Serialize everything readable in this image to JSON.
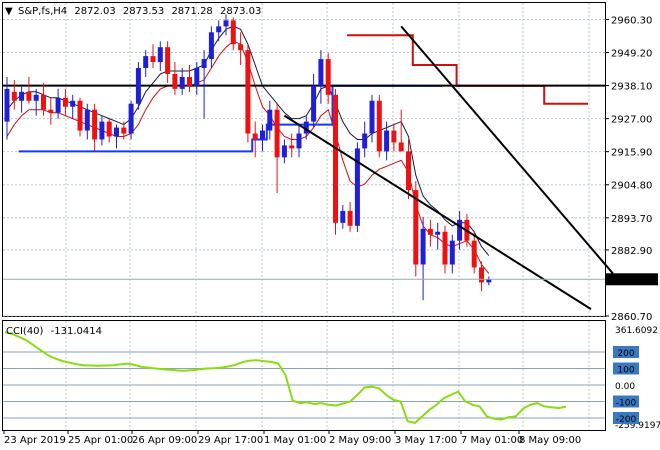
{
  "header": {
    "symbol": "S&P,fs,H4",
    "open": "2872.03",
    "high": "2873.53",
    "low": "2871.28",
    "close": "2873.03"
  },
  "cci_header": {
    "label": "CCI(40)",
    "value": "-131.0414"
  },
  "colors": {
    "bull": "#1f1fd8",
    "bear": "#ee1111",
    "grid": "#b9c7d3",
    "cci": "#88dd11",
    "upper_band": "#1a1a40",
    "lower_band": "#cc1111",
    "support": "#1438ff",
    "resistance": "#cc1111",
    "price_tag_bg": "#000000"
  },
  "chart_data": [
    {
      "type": "candlestick",
      "title": "",
      "ylim": [
        2860.7,
        2965.0
      ],
      "y_ticks": [
        "2960.30",
        "2949.20",
        "2938.10",
        "2927.00",
        "2915.90",
        "2904.80",
        "2893.70",
        "2882.90",
        "2860.70"
      ],
      "x_ticks": [
        "23 Apr 2019",
        "25 Apr 01:00",
        "26 Apr 09:00",
        "29 Apr 17:00",
        "1 May 01:00",
        "2 May 09:00",
        "3 May 17:00",
        "7 May 01:00",
        "8 May 09:00"
      ],
      "current_price": "2873.03",
      "horizontal_level": 2938.1,
      "candles": [
        {
          "o": 2926,
          "h": 2941,
          "l": 2920,
          "c": 2937
        },
        {
          "o": 2936,
          "h": 2940,
          "l": 2930,
          "c": 2933
        },
        {
          "o": 2933,
          "h": 2938,
          "l": 2929,
          "c": 2936
        },
        {
          "o": 2936,
          "h": 2941,
          "l": 2932,
          "c": 2933
        },
        {
          "o": 2933,
          "h": 2937,
          "l": 2928,
          "c": 2935
        },
        {
          "o": 2935,
          "h": 2939,
          "l": 2928,
          "c": 2930
        },
        {
          "o": 2930,
          "h": 2934,
          "l": 2925,
          "c": 2929
        },
        {
          "o": 2929,
          "h": 2937,
          "l": 2927,
          "c": 2934
        },
        {
          "o": 2934,
          "h": 2937,
          "l": 2928,
          "c": 2931
        },
        {
          "o": 2931,
          "h": 2935,
          "l": 2927,
          "c": 2933
        },
        {
          "o": 2933,
          "h": 2934,
          "l": 2921,
          "c": 2923
        },
        {
          "o": 2923,
          "h": 2932,
          "l": 2920,
          "c": 2930
        },
        {
          "o": 2930,
          "h": 2932,
          "l": 2916,
          "c": 2920
        },
        {
          "o": 2920,
          "h": 2928,
          "l": 2918,
          "c": 2926
        },
        {
          "o": 2926,
          "h": 2927,
          "l": 2919,
          "c": 2921
        },
        {
          "o": 2921,
          "h": 2925,
          "l": 2917,
          "c": 2924
        },
        {
          "o": 2924,
          "h": 2926,
          "l": 2920,
          "c": 2922
        },
        {
          "o": 2922,
          "h": 2933,
          "l": 2920,
          "c": 2932
        },
        {
          "o": 2932,
          "h": 2946,
          "l": 2930,
          "c": 2944
        },
        {
          "o": 2944,
          "h": 2950,
          "l": 2941,
          "c": 2948
        },
        {
          "o": 2948,
          "h": 2952,
          "l": 2944,
          "c": 2946
        },
        {
          "o": 2946,
          "h": 2953,
          "l": 2943,
          "c": 2951
        },
        {
          "o": 2951,
          "h": 2953,
          "l": 2939,
          "c": 2942
        },
        {
          "o": 2942,
          "h": 2946,
          "l": 2935,
          "c": 2937
        },
        {
          "o": 2937,
          "h": 2944,
          "l": 2935,
          "c": 2941
        },
        {
          "o": 2941,
          "h": 2945,
          "l": 2936,
          "c": 2938
        },
        {
          "o": 2938,
          "h": 2946,
          "l": 2935,
          "c": 2944
        },
        {
          "o": 2944,
          "h": 2950,
          "l": 2927,
          "c": 2947
        },
        {
          "o": 2947,
          "h": 2958,
          "l": 2944,
          "c": 2956
        },
        {
          "o": 2956,
          "h": 2960,
          "l": 2953,
          "c": 2958
        },
        {
          "o": 2958,
          "h": 2962,
          "l": 2955,
          "c": 2960
        },
        {
          "o": 2960,
          "h": 2961,
          "l": 2950,
          "c": 2952
        },
        {
          "o": 2952,
          "h": 2956,
          "l": 2945,
          "c": 2950
        },
        {
          "o": 2950,
          "h": 2952,
          "l": 2919,
          "c": 2922
        },
        {
          "o": 2922,
          "h": 2926,
          "l": 2914,
          "c": 2920
        },
        {
          "o": 2920,
          "h": 2925,
          "l": 2916,
          "c": 2923
        },
        {
          "o": 2923,
          "h": 2933,
          "l": 2920,
          "c": 2930
        },
        {
          "o": 2930,
          "h": 2932,
          "l": 2902,
          "c": 2914
        },
        {
          "o": 2914,
          "h": 2920,
          "l": 2912,
          "c": 2918
        },
        {
          "o": 2918,
          "h": 2922,
          "l": 2914,
          "c": 2917
        },
        {
          "o": 2917,
          "h": 2925,
          "l": 2914,
          "c": 2922
        },
        {
          "o": 2922,
          "h": 2928,
          "l": 2920,
          "c": 2926
        },
        {
          "o": 2926,
          "h": 2942,
          "l": 2924,
          "c": 2938
        },
        {
          "o": 2938,
          "h": 2950,
          "l": 2932,
          "c": 2947
        },
        {
          "o": 2947,
          "h": 2949,
          "l": 2932,
          "c": 2935
        },
        {
          "o": 2935,
          "h": 2937,
          "l": 2888,
          "c": 2892
        },
        {
          "o": 2892,
          "h": 2898,
          "l": 2890,
          "c": 2896
        },
        {
          "o": 2896,
          "h": 2899,
          "l": 2889,
          "c": 2891
        },
        {
          "o": 2891,
          "h": 2919,
          "l": 2889,
          "c": 2917
        },
        {
          "o": 2917,
          "h": 2926,
          "l": 2914,
          "c": 2922
        },
        {
          "o": 2922,
          "h": 2935,
          "l": 2919,
          "c": 2933
        },
        {
          "o": 2933,
          "h": 2935,
          "l": 2914,
          "c": 2916
        },
        {
          "o": 2916,
          "h": 2926,
          "l": 2913,
          "c": 2923
        },
        {
          "o": 2923,
          "h": 2925,
          "l": 2916,
          "c": 2919
        },
        {
          "o": 2919,
          "h": 2930,
          "l": 2916,
          "c": 2916
        },
        {
          "o": 2916,
          "h": 2920,
          "l": 2900,
          "c": 2903
        },
        {
          "o": 2903,
          "h": 2906,
          "l": 2874,
          "c": 2878
        },
        {
          "o": 2878,
          "h": 2894,
          "l": 2866,
          "c": 2890
        },
        {
          "o": 2890,
          "h": 2893,
          "l": 2884,
          "c": 2888
        },
        {
          "o": 2888,
          "h": 2892,
          "l": 2883,
          "c": 2889
        },
        {
          "o": 2889,
          "h": 2891,
          "l": 2875,
          "c": 2878
        },
        {
          "o": 2878,
          "h": 2888,
          "l": 2875,
          "c": 2886
        },
        {
          "o": 2886,
          "h": 2896,
          "l": 2883,
          "c": 2893
        },
        {
          "o": 2893,
          "h": 2895,
          "l": 2884,
          "c": 2886
        },
        {
          "o": 2886,
          "h": 2889,
          "l": 2875,
          "c": 2877
        },
        {
          "o": 2877,
          "h": 2879,
          "l": 2869,
          "c": 2872
        },
        {
          "o": 2872,
          "h": 2874,
          "l": 2871,
          "c": 2873
        }
      ],
      "upper_band": [
        2930,
        2933,
        2935,
        2936,
        2936,
        2935,
        2934,
        2934,
        2933,
        2932,
        2931,
        2930,
        2929,
        2928,
        2927,
        2926,
        2925,
        2927,
        2931,
        2936,
        2939,
        2942,
        2943,
        2943,
        2943,
        2943,
        2944,
        2945,
        2950,
        2954,
        2957,
        2958,
        2957,
        2952,
        2945,
        2938,
        2935,
        2932,
        2929,
        2927,
        2927,
        2928,
        2932,
        2937,
        2938,
        2932,
        2926,
        2922,
        2920,
        2920,
        2922,
        2923,
        2924,
        2925,
        2926,
        2921,
        2908,
        2901,
        2898,
        2896,
        2893,
        2891,
        2892,
        2892,
        2889,
        2884,
        2881
      ],
      "lower_band": [
        2921,
        2925,
        2928,
        2930,
        2930,
        2930,
        2929,
        2929,
        2928,
        2927,
        2926,
        2925,
        2924,
        2923,
        2922,
        2921,
        2921,
        2922,
        2925,
        2930,
        2934,
        2937,
        2938,
        2938,
        2938,
        2938,
        2939,
        2940,
        2944,
        2948,
        2951,
        2953,
        2952,
        2946,
        2938,
        2931,
        2928,
        2924,
        2921,
        2920,
        2920,
        2921,
        2924,
        2928,
        2930,
        2922,
        2913,
        2906,
        2904,
        2905,
        2908,
        2910,
        2911,
        2912,
        2913,
        2909,
        2898,
        2891,
        2888,
        2887,
        2885,
        2884,
        2885,
        2886,
        2883,
        2878,
        2875
      ],
      "support_steps": [
        {
          "from": 2,
          "to": 34,
          "level": 2916
        },
        {
          "from": 34,
          "to": 36,
          "level": 2920
        },
        {
          "from": 36,
          "to": 45,
          "level": 2925
        },
        {
          "from": 45,
          "to": 60,
          "level": 2938
        }
      ],
      "resistance_steps": [
        {
          "from": 47,
          "to": 56,
          "level": 2955
        },
        {
          "from": 56,
          "to": 62,
          "level": 2945
        },
        {
          "from": 62,
          "to": 74,
          "level": 2938
        },
        {
          "from": 74,
          "to": 80,
          "level": 2932
        }
      ],
      "trend_lines": [
        {
          "from": [
            38,
            2928
          ],
          "to": [
            80,
            2863
          ]
        },
        {
          "from": [
            54,
            2958
          ],
          "to": [
            83,
            2875
          ]
        }
      ]
    },
    {
      "type": "line",
      "title": "",
      "ylim": [
        -265,
        361.6092
      ],
      "y_ticks": [
        "361.6092",
        "200",
        "100",
        "0.00",
        "-100",
        "-200",
        "-259.9197"
      ],
      "levels": [
        200,
        100,
        0,
        -100,
        -200
      ],
      "series": [
        {
          "values": [
            320,
            310,
            290,
            270,
            240,
            210,
            180,
            160,
            145,
            135,
            125,
            120,
            118,
            117,
            118,
            120,
            125,
            130,
            122,
            110,
            105,
            100,
            96,
            92,
            88,
            86,
            90,
            96,
            100,
            102,
            105,
            112,
            122,
            138,
            148,
            150,
            145,
            140,
            130,
            60,
            -95,
            -110,
            -105,
            -115,
            -110,
            -120,
            -125,
            -112,
            -100,
            -60,
            -15,
            -10,
            -20,
            -60,
            -90,
            -100,
            -220,
            -230,
            -190,
            -150,
            -120,
            -80,
            -60,
            -40,
            -100,
            -120,
            -130,
            -190,
            -205,
            -210,
            -195,
            -190,
            -145,
            -120,
            -110,
            -130,
            -135,
            -140,
            -131
          ]
        }
      ]
    }
  ]
}
